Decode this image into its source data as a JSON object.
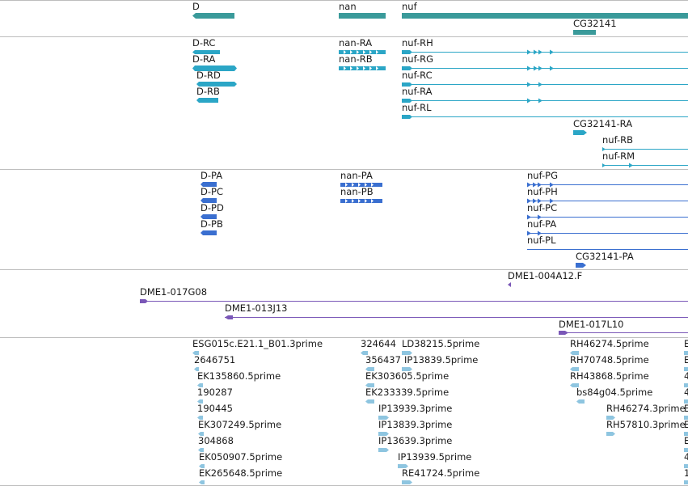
{
  "colors": {
    "gene": "#3a9a9a",
    "transcript": "#2ba6c6",
    "protein": "#3a6fd0",
    "clone": "#7a57b7",
    "est": "#8ec5e0",
    "divider": "#bdbdbd"
  },
  "tracks": {
    "genes": {
      "labels": [
        "D",
        "nan",
        "nuf",
        "CG32141"
      ]
    },
    "transcripts": {
      "labels": [
        "D-RC",
        "D-RA",
        "D-RD",
        "D-RB",
        "nan-RA",
        "nan-RB",
        "nuf-RH",
        "nuf-RG",
        "nuf-RC",
        "nuf-RA",
        "nuf-RL",
        "CG32141-RA",
        "nuf-RB",
        "nuf-RM"
      ]
    },
    "proteins": {
      "labels": [
        "D-PA",
        "D-PC",
        "D-PD",
        "D-PB",
        "nan-PA",
        "nan-PB",
        "nuf-PG",
        "nuf-PH",
        "nuf-PC",
        "nuf-PA",
        "nuf-PL",
        "CG32141-PA"
      ]
    },
    "clones": {
      "labels": [
        "DME1-004A12.F",
        "DME1-017G08",
        "DME1-013J13",
        "DME1-017L10"
      ]
    },
    "ests": {
      "col1": [
        "ESG015c.E21.1_B01.3prime",
        "2646751",
        "EK135860.5prime",
        "190287",
        "190445",
        "EK307249.5prime",
        "304868",
        "EK050907.5prime",
        "EK265648.5prime"
      ],
      "col2": [
        "324644",
        "356437",
        "EK303605.5prime",
        "EK233339.5prime",
        "IP13939.3prime",
        "IP13839.3prime",
        "IP13639.3prime",
        "IP13939.5prime",
        "RE41724.5prime"
      ],
      "col3": [
        "LD38215.5prime",
        "IP13839.5prime"
      ],
      "col4": [
        "RH46274.5prime",
        "RH70748.5prime",
        "RH43868.5prime",
        "bs84g04.5prime",
        "RH46274.3prime",
        "RH57810.3prime"
      ],
      "col5": [
        "E",
        "E",
        "4",
        "4",
        "E",
        "E",
        "E",
        "4",
        "1"
      ]
    }
  }
}
